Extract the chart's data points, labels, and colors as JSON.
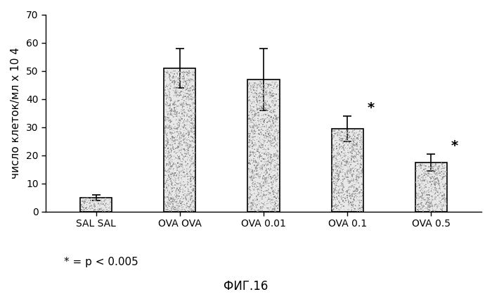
{
  "categories": [
    "SAL SAL",
    "OVA OVA",
    "OVA 0.01",
    "OVA 0.1",
    "OVA 0.5"
  ],
  "values": [
    5.0,
    51.0,
    47.0,
    29.5,
    17.5
  ],
  "errors": [
    1.0,
    7.0,
    11.0,
    4.5,
    3.0
  ],
  "asterisk": [
    false,
    false,
    false,
    true,
    true
  ],
  "ylabel": "число клеток/мл х 10 4",
  "ylim": [
    0,
    70
  ],
  "yticks": [
    0,
    10,
    20,
    30,
    40,
    50,
    60,
    70
  ],
  "bar_color": "#e8e8e8",
  "bar_edge_color": "#000000",
  "bar_width": 0.38,
  "annotation": "* = p < 0.005",
  "figure_label": "ФИГ.16",
  "background_color": "#ffffff",
  "axis_fontsize": 11,
  "tick_fontsize": 10,
  "annot_fontsize": 11,
  "label_fontsize": 12
}
